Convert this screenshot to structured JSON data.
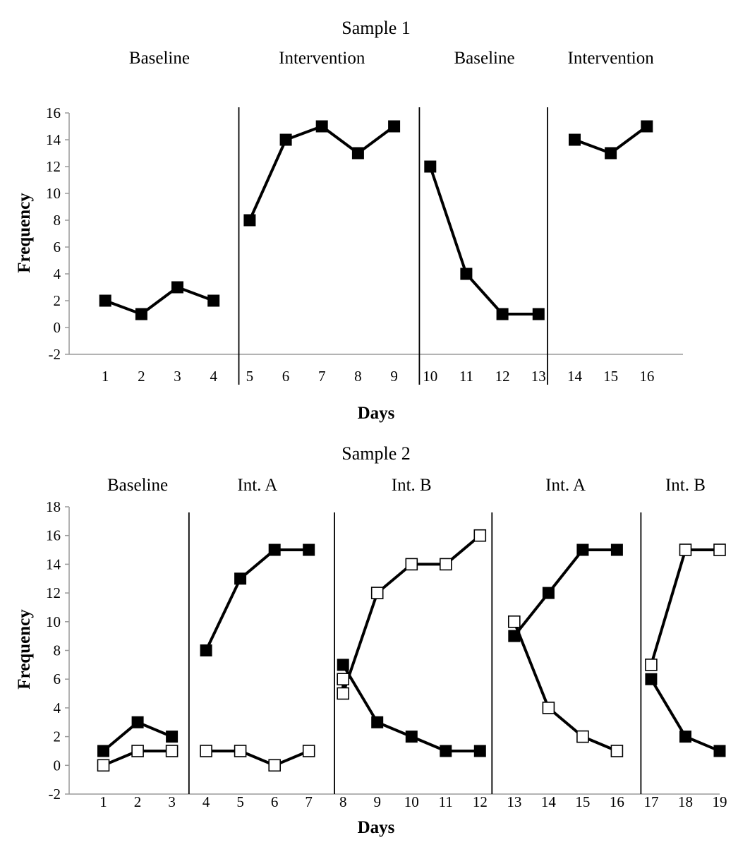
{
  "chart_data": [
    {
      "type": "line",
      "title": "Sample 1",
      "xlabel": "Days",
      "ylabel": "Frequency",
      "ylim": [
        -2,
        16
      ],
      "yticks": [
        -2,
        0,
        2,
        4,
        6,
        8,
        10,
        12,
        14,
        16
      ],
      "xlim": [
        0,
        17
      ],
      "categories": [
        "1",
        "2",
        "3",
        "4",
        "5",
        "6",
        "7",
        "8",
        "9",
        "10",
        "11",
        "12",
        "13",
        "14",
        "15",
        "16"
      ],
      "grid": false,
      "phases": [
        {
          "label": "Baseline",
          "start": 1,
          "end": 4
        },
        {
          "label": "Intervention",
          "start": 5,
          "end": 9
        },
        {
          "label": "Baseline",
          "start": 10,
          "end": 13
        },
        {
          "label": "Intervention",
          "start": 14,
          "end": 16
        }
      ],
      "phase_dividers": [
        4.7,
        9.7,
        13.25
      ],
      "series": [
        {
          "marker": "filled-square",
          "color": "#000000",
          "segments": [
            [
              [
                1,
                2
              ],
              [
                2,
                1
              ],
              [
                3,
                3
              ],
              [
                4,
                2
              ]
            ],
            [
              [
                5,
                8
              ],
              [
                6,
                14
              ],
              [
                7,
                15
              ],
              [
                8,
                13
              ],
              [
                9,
                15
              ]
            ],
            [
              [
                10,
                12
              ],
              [
                11,
                4
              ],
              [
                12,
                1
              ],
              [
                13,
                1
              ]
            ],
            [
              [
                14,
                14
              ],
              [
                15,
                13
              ],
              [
                16,
                15
              ]
            ]
          ]
        }
      ]
    },
    {
      "type": "line",
      "title": "Sample 2",
      "xlabel": "Days",
      "ylabel": "Frequency",
      "ylim": [
        -2,
        18
      ],
      "yticks": [
        -2,
        0,
        2,
        4,
        6,
        8,
        10,
        12,
        14,
        16,
        18
      ],
      "xlim": [
        0,
        19
      ],
      "categories": [
        "1",
        "2",
        "3",
        "4",
        "5",
        "6",
        "7",
        "8",
        "9",
        "10",
        "11",
        "12",
        "13",
        "14",
        "15",
        "16",
        "17",
        "18",
        "19"
      ],
      "grid": false,
      "phases": [
        {
          "label": "Baseline",
          "start": 1,
          "end": 3
        },
        {
          "label": "Int. A",
          "start": 4,
          "end": 7
        },
        {
          "label": "Int. B",
          "start": 8,
          "end": 12
        },
        {
          "label": "Int. A",
          "start": 13,
          "end": 16
        },
        {
          "label": "Int. B",
          "start": 17,
          "end": 19
        }
      ],
      "phase_dividers": [
        3.5,
        7.75,
        12.35,
        16.7
      ],
      "series": [
        {
          "marker": "filled-square",
          "color": "#000000",
          "segments": [
            [
              [
                1,
                1
              ],
              [
                2,
                3
              ],
              [
                3,
                2
              ]
            ],
            [
              [
                4,
                8
              ],
              [
                5,
                13
              ],
              [
                6,
                15
              ],
              [
                7,
                15
              ]
            ],
            [
              [
                8,
                7
              ],
              [
                9,
                3
              ],
              [
                10,
                2
              ],
              [
                11,
                1
              ],
              [
                12,
                1
              ]
            ],
            [
              [
                13,
                9
              ],
              [
                14,
                12
              ],
              [
                15,
                15
              ],
              [
                16,
                15
              ]
            ],
            [
              [
                17,
                6
              ],
              [
                18,
                2
              ],
              [
                19,
                1
              ]
            ]
          ]
        },
        {
          "marker": "open-square",
          "color": "#000000",
          "segments": [
            [
              [
                1,
                0
              ],
              [
                2,
                1
              ],
              [
                3,
                1
              ]
            ],
            [
              [
                4,
                1
              ],
              [
                5,
                1
              ],
              [
                6,
                0
              ],
              [
                7,
                1
              ]
            ],
            [
              [
                8,
                6
              ],
              [
                8,
                5
              ],
              [
                9,
                12
              ],
              [
                10,
                14
              ],
              [
                11,
                14
              ],
              [
                12,
                16
              ]
            ],
            [
              [
                13,
                10
              ],
              [
                14,
                4
              ],
              [
                15,
                2
              ],
              [
                16,
                1
              ]
            ],
            [
              [
                17,
                7
              ],
              [
                18,
                15
              ],
              [
                19,
                15
              ]
            ]
          ]
        }
      ]
    }
  ]
}
